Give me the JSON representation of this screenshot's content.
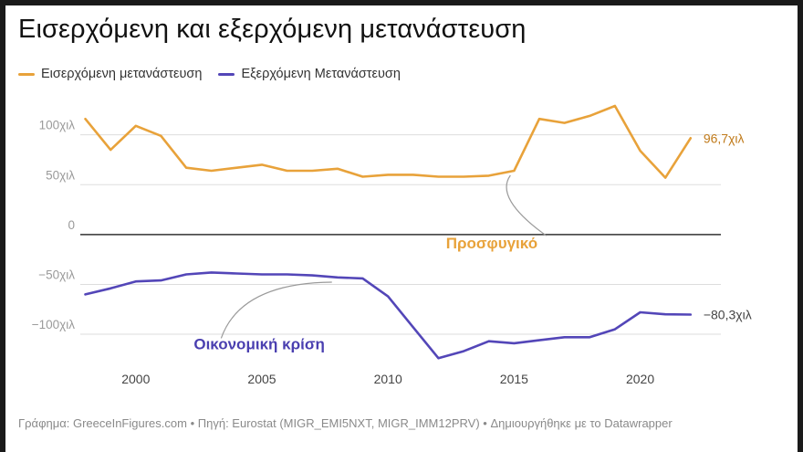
{
  "title": "Εισερχόμενη και εξερχόμενη μετανάστευση",
  "footer": "Γράφημα: GreeceInFigures.com • Πηγή: Eurostat (MIGR_EMI5NXT, MIGR_IMM12PRV) • Δημιουργήθηκε με το Datawrapper",
  "colors": {
    "immigration": "#e8a23a",
    "emigration": "#5346b8",
    "annotation_immigration": "#e8a23a",
    "annotation_emigration": "#4a3fb0"
  },
  "chart_data": {
    "type": "line",
    "x": [
      1998,
      1999,
      2000,
      2001,
      2002,
      2003,
      2004,
      2005,
      2006,
      2007,
      2008,
      2009,
      2010,
      2011,
      2012,
      2013,
      2014,
      2015,
      2016,
      2017,
      2018,
      2019,
      2020,
      2021,
      2022
    ],
    "series": [
      {
        "name": "Εισερχόμενη μετανάστευση",
        "values": [
          116,
          85,
          109,
          99,
          67,
          64,
          67,
          70,
          64,
          64,
          66,
          58,
          60,
          60,
          58,
          58,
          59,
          64,
          116,
          112,
          119,
          129,
          84,
          57,
          96.7
        ],
        "end_label": "96,7χιλ"
      },
      {
        "name": "Εξερχόμενη Μετανάστευση",
        "values": [
          -60,
          -54,
          -47,
          -46,
          -40,
          -38,
          -39,
          -40,
          -40,
          -41,
          -43,
          -44,
          -62,
          -93,
          -124,
          -117,
          -107,
          -109,
          -106,
          -103,
          -103,
          -95,
          -78,
          -80,
          -80.3
        ],
        "end_label": "−80,3χιλ"
      }
    ],
    "y_ticks": [
      {
        "value": 100,
        "label": "100χιλ"
      },
      {
        "value": 50,
        "label": "50χιλ"
      },
      {
        "value": 0,
        "label": "0"
      },
      {
        "value": -50,
        "label": "−50χιλ"
      },
      {
        "value": -100,
        "label": "−100χιλ"
      }
    ],
    "x_ticks": [
      {
        "value": 2000,
        "label": "2000"
      },
      {
        "value": 2005,
        "label": "2005"
      },
      {
        "value": 2010,
        "label": "2010"
      },
      {
        "value": 2015,
        "label": "2015"
      },
      {
        "value": 2020,
        "label": "2020"
      }
    ],
    "xlim": [
      1997.8,
      2023.2
    ],
    "ylim": [
      -132,
      140
    ],
    "grid": true,
    "legend": "top-left",
    "annotations": [
      {
        "text": "Προσφυγικό",
        "series": 0,
        "x": 2015,
        "y": 64,
        "label_x": 2012.3,
        "label_y": -14
      },
      {
        "text": "Οικονομική κρίση",
        "series": 1,
        "x": 2008.5,
        "y": -45,
        "label_x": 2002.3,
        "label_y": -115
      }
    ]
  }
}
